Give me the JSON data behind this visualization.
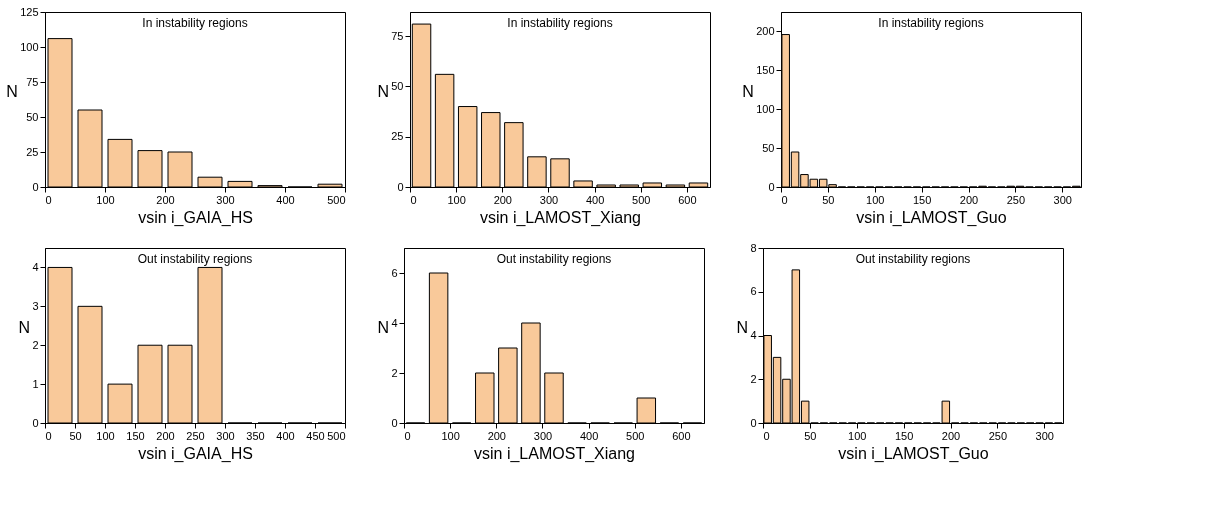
{
  "chart_data": [
    {
      "type": "histogram",
      "xlabel": "vsin i_GAIA_HS",
      "ylabel": "N",
      "annotations": [
        "In instability regions"
      ],
      "color": "#f9c99a",
      "grid": false,
      "bins": [
        0,
        50,
        100,
        150,
        200,
        250,
        300,
        350,
        400,
        450,
        500
      ],
      "values": [
        106,
        55,
        34,
        26,
        25,
        7,
        4,
        1,
        0,
        2
      ],
      "xlim": [
        0,
        500
      ],
      "xticks": [
        0,
        100,
        200,
        300,
        400,
        500
      ],
      "ylim": [
        0,
        125
      ],
      "yticks": [
        0,
        25,
        50,
        75,
        100,
        125
      ]
    },
    {
      "type": "histogram",
      "xlabel": "vsin i_LAMOST_Xiang",
      "ylabel": "N",
      "annotations": [
        "In instability regions"
      ],
      "color": "#f9c99a",
      "grid": false,
      "bins": [
        0,
        50,
        100,
        150,
        200,
        250,
        300,
        350,
        400,
        450,
        500,
        550,
        600,
        650
      ],
      "values": [
        81,
        56,
        40,
        37,
        32,
        15,
        14,
        3,
        1,
        1,
        2,
        1,
        2
      ],
      "xlim": [
        0,
        650
      ],
      "xticks": [
        0,
        100,
        200,
        300,
        400,
        500,
        600
      ],
      "ylim": [
        0,
        87
      ],
      "yticks": [
        0,
        25,
        50,
        75
      ]
    },
    {
      "type": "histogram",
      "xlabel": "vsin i_LAMOST_Guo",
      "ylabel": "N",
      "annotations": [
        "In instability regions"
      ],
      "color": "#f9c99a",
      "grid": false,
      "bins": [
        0,
        10,
        20,
        30,
        40,
        50,
        60,
        70,
        80,
        90,
        100,
        110,
        120,
        130,
        140,
        150,
        160,
        170,
        180,
        190,
        200,
        210,
        220,
        230,
        240,
        250,
        260,
        270,
        280,
        290,
        300,
        310,
        320
      ],
      "values": [
        196,
        45,
        16,
        10,
        10,
        3,
        0,
        0,
        0,
        0,
        0,
        0,
        0,
        0,
        0,
        0,
        0,
        0,
        0,
        0,
        0,
        1,
        0,
        0,
        1,
        1,
        0,
        0,
        0,
        0,
        0,
        1
      ],
      "xlim": [
        0,
        320
      ],
      "xticks": [
        0,
        50,
        100,
        150,
        200,
        250,
        300
      ],
      "ylim": [
        0,
        225
      ],
      "yticks": [
        0,
        50,
        100,
        150,
        200
      ]
    },
    {
      "type": "histogram",
      "xlabel": "vsin i_GAIA_HS",
      "ylabel": "N",
      "annotations": [
        "Out instability regions"
      ],
      "color": "#f9c99a",
      "grid": false,
      "bins": [
        0,
        50,
        100,
        150,
        200,
        250,
        300,
        350,
        400,
        450,
        500
      ],
      "values": [
        4,
        3,
        1,
        2,
        2,
        4,
        0,
        0,
        0,
        0
      ],
      "xlim": [
        0,
        500
      ],
      "xticks": [
        0,
        50,
        100,
        150,
        200,
        250,
        300,
        350,
        400,
        450,
        500
      ],
      "ylim": [
        0,
        4.5
      ],
      "yticks": [
        0,
        1,
        2,
        3,
        4
      ]
    },
    {
      "type": "histogram",
      "xlabel": "vsin i_LAMOST_Xiang",
      "ylabel": "N",
      "annotations": [
        "Out instability regions"
      ],
      "color": "#f9c99a",
      "grid": false,
      "bins": [
        0,
        50,
        100,
        150,
        200,
        250,
        300,
        350,
        400,
        450,
        500,
        550,
        600,
        650
      ],
      "values": [
        0,
        6,
        0,
        2,
        3,
        4,
        2,
        0,
        0,
        0,
        1,
        0,
        0
      ],
      "xlim": [
        0,
        650
      ],
      "xticks": [
        0,
        100,
        200,
        300,
        400,
        500,
        600
      ],
      "ylim": [
        0,
        7
      ],
      "yticks": [
        0,
        2,
        4,
        6
      ]
    },
    {
      "type": "histogram",
      "xlabel": "vsin i_LAMOST_Guo",
      "ylabel": "N",
      "annotations": [
        "Out instability regions"
      ],
      "color": "#f9c99a",
      "grid": false,
      "bins": [
        0,
        10,
        20,
        30,
        40,
        50,
        60,
        70,
        80,
        90,
        100,
        110,
        120,
        130,
        140,
        150,
        160,
        170,
        180,
        190,
        200,
        210,
        220,
        230,
        240,
        250,
        260,
        270,
        280,
        290,
        300,
        310,
        320
      ],
      "values": [
        4,
        3,
        2,
        7,
        1,
        0,
        0,
        0,
        0,
        0,
        0,
        0,
        0,
        0,
        0,
        0,
        0,
        0,
        0,
        1,
        0,
        0,
        0,
        0,
        0,
        0,
        0,
        0,
        0,
        0,
        0,
        0
      ],
      "xlim": [
        0,
        320
      ],
      "xticks": [
        0,
        50,
        100,
        150,
        200,
        250,
        300
      ],
      "ylim": [
        0,
        8
      ],
      "yticks": [
        0,
        2,
        4,
        6,
        8
      ]
    }
  ]
}
